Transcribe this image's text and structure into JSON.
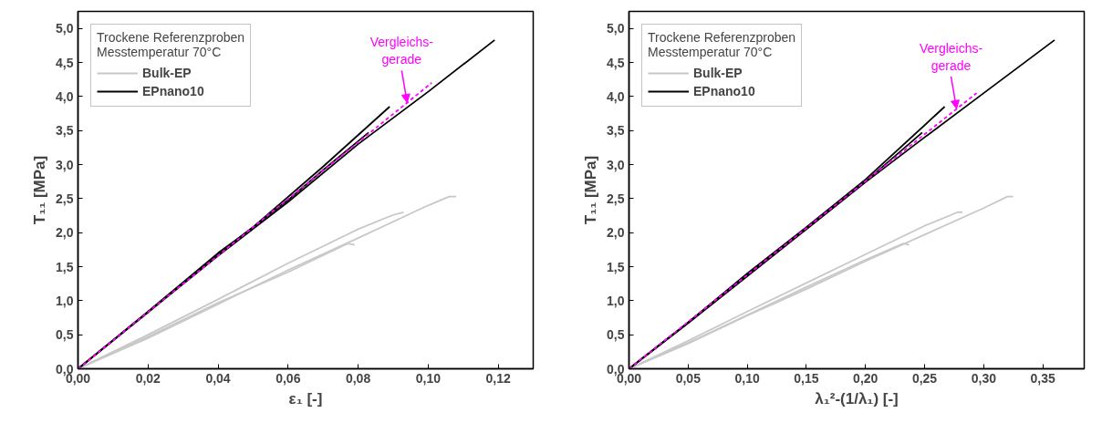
{
  "chart_data": [
    {
      "type": "line",
      "xlabel": "ε₁ [-]",
      "ylabel": "T₁₁ [MPa]",
      "legend_title": "Trockene Referenzproben\nMesstemperatur 70°C",
      "legend": "top left",
      "grid": false,
      "line_style": "solid",
      "marker": "none",
      "xlim": [
        0,
        0.13
      ],
      "ylim": [
        0,
        5.25
      ],
      "xticks": [
        {
          "value": 0,
          "label": "0,00"
        },
        {
          "value": 0.02,
          "label": "0,02"
        },
        {
          "value": 0.04,
          "label": "0,04"
        },
        {
          "value": 0.06,
          "label": "0,06"
        },
        {
          "value": 0.08,
          "label": "0,08"
        },
        {
          "value": 0.1,
          "label": "0,10"
        },
        {
          "value": 0.12,
          "label": "0,12"
        }
      ],
      "yticks": [
        {
          "value": 0,
          "label": "0,0"
        },
        {
          "value": 0.5,
          "label": "0,5"
        },
        {
          "value": 1,
          "label": "1,0"
        },
        {
          "value": 1.5,
          "label": "1,5"
        },
        {
          "value": 2,
          "label": "2,0"
        },
        {
          "value": 2.5,
          "label": "2,5"
        },
        {
          "value": 3,
          "label": "3,0"
        },
        {
          "value": 3.5,
          "label": "3,5"
        },
        {
          "value": 4,
          "label": "4,0"
        },
        {
          "value": 4.5,
          "label": "4,5"
        },
        {
          "value": 5,
          "label": "5,0"
        }
      ],
      "series": [
        {
          "name": "Bulk-EP",
          "color": "#c8c8c8",
          "x": [
            0,
            0.02,
            0.04,
            0.06,
            0.08,
            0.1,
            0.106,
            0.108
          ],
          "values": [
            0,
            0.45,
            0.95,
            1.45,
            1.92,
            2.4,
            2.53,
            2.53
          ]
        },
        {
          "color": "#c8c8c8",
          "x": [
            0,
            0.02,
            0.04,
            0.06,
            0.08,
            0.09,
            0.093
          ],
          "values": [
            0,
            0.5,
            1.02,
            1.55,
            2.05,
            2.26,
            2.3
          ]
        },
        {
          "color": "#c8c8c8",
          "x": [
            0,
            0.02,
            0.04,
            0.06,
            0.077,
            0.079
          ],
          "values": [
            0,
            0.47,
            0.97,
            1.42,
            1.84,
            1.82
          ]
        },
        {
          "name": "EPnano10",
          "color": "#000000",
          "x": [
            0,
            0.02,
            0.04,
            0.06,
            0.08,
            0.1,
            0.119
          ],
          "values": [
            0,
            0.83,
            1.66,
            2.45,
            3.3,
            4.07,
            4.83
          ]
        },
        {
          "color": "#000000",
          "x": [
            0,
            0.02,
            0.04,
            0.05,
            0.07,
            0.089
          ],
          "values": [
            0,
            0.84,
            1.7,
            2.08,
            2.97,
            3.85
          ]
        },
        {
          "color": "#000000",
          "x": [
            0,
            0.02,
            0.04,
            0.06,
            0.07,
            0.083
          ],
          "values": [
            0,
            0.83,
            1.68,
            2.48,
            2.92,
            3.47
          ]
        },
        {
          "color": "#ff00ff",
          "line_style": "dashed",
          "x": [
            0,
            0.101
          ],
          "values": [
            0,
            4.2
          ]
        }
      ],
      "annotations": [
        {
          "text": "Vergleichs-\ngerade",
          "x": 0.094,
          "y": 3.91
        }
      ]
    },
    {
      "type": "line",
      "xlabel": "λ₁²-(1/λ₁) [-]",
      "ylabel": "T₁₁ [MPa]",
      "legend_title": "Trockene Referenzproben\nMesstemperatur 70°C",
      "legend": "top left",
      "grid": false,
      "line_style": "solid",
      "marker": "none",
      "xlim": [
        0,
        0.385
      ],
      "ylim": [
        0,
        5.25
      ],
      "xticks": [
        {
          "value": 0,
          "label": "0,00"
        },
        {
          "value": 0.05,
          "label": "0,05"
        },
        {
          "value": 0.1,
          "label": "0,10"
        },
        {
          "value": 0.15,
          "label": "0,15"
        },
        {
          "value": 0.2,
          "label": "0,20"
        },
        {
          "value": 0.25,
          "label": "0,25"
        },
        {
          "value": 0.3,
          "label": "0,30"
        },
        {
          "value": 0.35,
          "label": "0,35"
        }
      ],
      "yticks": [
        {
          "value": 0,
          "label": "0,0"
        },
        {
          "value": 0.5,
          "label": "0,5"
        },
        {
          "value": 1,
          "label": "1,0"
        },
        {
          "value": 1.5,
          "label": "1,5"
        },
        {
          "value": 2,
          "label": "2,0"
        },
        {
          "value": 2.5,
          "label": "2,5"
        },
        {
          "value": 3,
          "label": "3,0"
        },
        {
          "value": 3.5,
          "label": "3,5"
        },
        {
          "value": 4,
          "label": "4,0"
        },
        {
          "value": 4.5,
          "label": "4,5"
        },
        {
          "value": 5,
          "label": "5,0"
        }
      ],
      "series": [
        {
          "name": "Bulk-EP",
          "color": "#c8c8c8",
          "x": [
            0,
            0.05,
            0.1,
            0.15,
            0.2,
            0.25,
            0.3,
            0.32,
            0.325
          ],
          "values": [
            0,
            0.37,
            0.78,
            1.17,
            1.58,
            1.97,
            2.36,
            2.53,
            2.53
          ]
        },
        {
          "color": "#c8c8c8",
          "x": [
            0,
            0.05,
            0.1,
            0.15,
            0.2,
            0.25,
            0.278,
            0.282
          ],
          "values": [
            0,
            0.41,
            0.84,
            1.26,
            1.68,
            2.1,
            2.3,
            2.3
          ]
        },
        {
          "color": "#c8c8c8",
          "x": [
            0,
            0.05,
            0.1,
            0.15,
            0.2,
            0.232,
            0.237
          ],
          "values": [
            0,
            0.38,
            0.79,
            1.2,
            1.6,
            1.84,
            1.82
          ]
        },
        {
          "name": "EPnano10",
          "color": "#000000",
          "x": [
            0,
            0.05,
            0.1,
            0.15,
            0.2,
            0.25,
            0.3,
            0.36
          ],
          "values": [
            0,
            0.67,
            1.36,
            2.05,
            2.74,
            3.4,
            4.05,
            4.83
          ]
        },
        {
          "color": "#000000",
          "x": [
            0,
            0.05,
            0.1,
            0.15,
            0.2,
            0.267
          ],
          "values": [
            0,
            0.68,
            1.4,
            2.08,
            2.78,
            3.85
          ]
        },
        {
          "color": "#000000",
          "x": [
            0,
            0.05,
            0.1,
            0.15,
            0.2,
            0.248
          ],
          "values": [
            0,
            0.68,
            1.38,
            2.06,
            2.75,
            3.47
          ]
        },
        {
          "color": "#ff00ff",
          "line_style": "dashed",
          "x": [
            0,
            0.294
          ],
          "values": [
            0,
            4.05
          ]
        }
      ],
      "annotations": [
        {
          "text": "Vergleichs-\ngerade",
          "x": 0.277,
          "y": 3.82
        }
      ]
    }
  ]
}
